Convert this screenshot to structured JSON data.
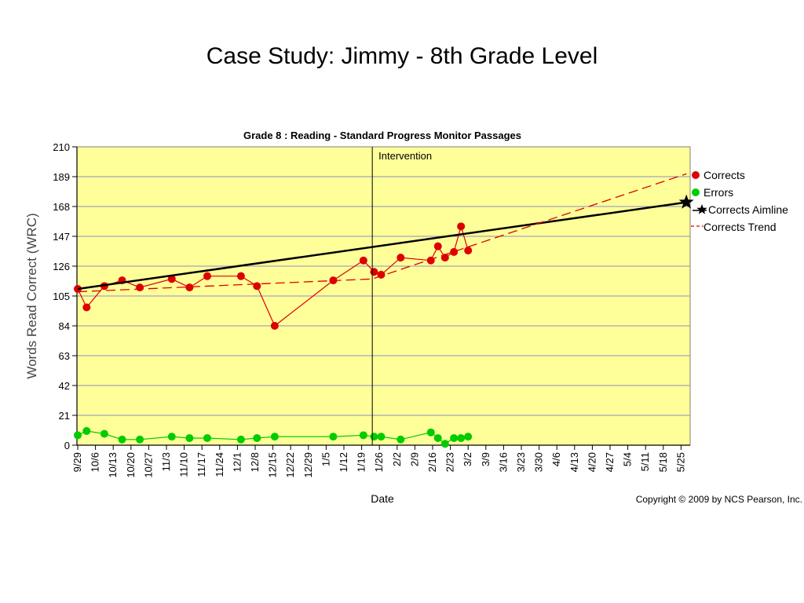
{
  "slide": {
    "title": "Case Study: Jimmy - 8th Grade Level"
  },
  "chart_data": {
    "type": "line",
    "title": "Grade 8 : Reading - Standard Progress Monitor Passages",
    "xlabel": "Date",
    "ylabel": "Words Read Correct (WRC)",
    "ylim": [
      0,
      210
    ],
    "yticks": [
      0,
      21,
      42,
      63,
      84,
      105,
      126,
      147,
      168,
      189,
      210
    ],
    "grid": true,
    "legend_position": "right",
    "categories": [
      "9/29",
      "10/6",
      "10/13",
      "10/20",
      "10/27",
      "11/3",
      "11/10",
      "11/17",
      "11/24",
      "12/1",
      "12/8",
      "12/15",
      "12/22",
      "12/29",
      "1/5",
      "1/12",
      "1/19",
      "1/26",
      "2/2",
      "2/9",
      "2/16",
      "2/23",
      "3/2",
      "3/9",
      "3/16",
      "3/23",
      "3/30",
      "4/6",
      "4/13",
      "4/20",
      "4/27",
      "5/4",
      "5/11",
      "5/18",
      "5/25"
    ],
    "x_unit": "weeks since 9/29",
    "annotation": {
      "label": "Intervention",
      "x": 16.6
    },
    "series": [
      {
        "name": "Corrects",
        "color": "#dd0000",
        "marker": "circle",
        "x": [
          0,
          0.5,
          1.5,
          2.5,
          3.5,
          5.3,
          6.3,
          7.3,
          9.2,
          10.1,
          11.1,
          14.4,
          16.1,
          16.7,
          17.1,
          18.2,
          19.9,
          20.3,
          20.7,
          21.2,
          21.6,
          22.0
        ],
        "y": [
          110,
          97,
          112,
          116,
          111,
          117,
          111,
          119,
          119,
          112,
          84,
          116,
          130,
          122,
          120,
          132,
          130,
          140,
          132,
          136,
          154,
          137
        ]
      },
      {
        "name": "Errors",
        "color": "#00cc00",
        "marker": "circle",
        "x": [
          0,
          0.5,
          1.5,
          2.5,
          3.5,
          5.3,
          6.3,
          7.3,
          9.2,
          10.1,
          11.1,
          14.4,
          16.1,
          16.7,
          17.1,
          18.2,
          19.9,
          20.3,
          20.7,
          21.2,
          21.6,
          22.0
        ],
        "y": [
          7,
          10,
          8,
          4,
          4,
          6,
          5,
          5,
          4,
          5,
          6,
          6,
          7,
          6,
          6,
          4,
          9,
          5,
          1,
          5,
          5,
          6
        ]
      },
      {
        "name": "Corrects Aimline",
        "color": "#000000",
        "marker": "star",
        "x": [
          0,
          34.3
        ],
        "y": [
          110,
          171
        ]
      },
      {
        "name": "Corrects Trend",
        "color": "#dd0000",
        "dash": true,
        "x": [
          0,
          16.6,
          34.3
        ],
        "y": [
          108,
          117,
          191
        ]
      }
    ],
    "copyright": "Copyright © 2009 by NCS Pearson, Inc."
  }
}
